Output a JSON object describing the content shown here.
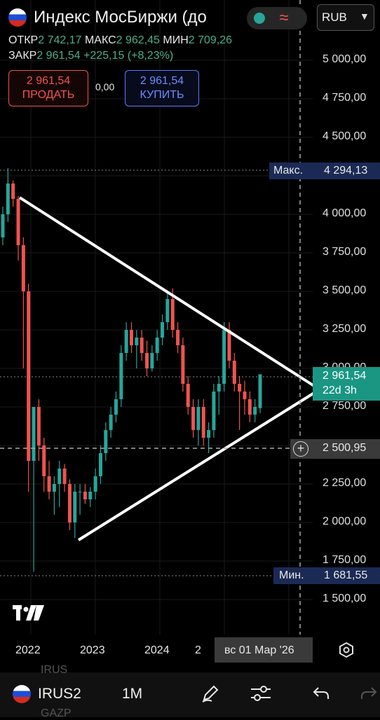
{
  "header": {
    "title": "Индекс МосБиржи (до",
    "currency": "RUB",
    "open_label": "ОТКР",
    "open_value": "2 742,17",
    "high_label": "МАКС",
    "high_value": "2 962,45",
    "low_label": "МИН",
    "low_value": "2 709,26",
    "close_label": "ЗАКР",
    "close_value": "2 961,54",
    "change": "+225,15 (+8,23%)",
    "sell_price": "2 961,54",
    "sell_label": "ПРОДАТЬ",
    "spread": "0,00",
    "buy_price": "2 961,54",
    "buy_label": "КУПИТЬ"
  },
  "chart_data": {
    "type": "candlestick",
    "y_ticks": [
      "5 000,00",
      "4 750,00",
      "4 500,00",
      "4 250,00",
      "4 000,00",
      "3 750,00",
      "3 500,00",
      "3 250,00",
      "3 000,00",
      "2 750,00",
      "2 500,00",
      "2 250,00",
      "2 000,00",
      "1 750,00",
      "1 500,00"
    ],
    "x_ticks": [
      "2022",
      "2023",
      "2024",
      "2"
    ],
    "max_label": "Макс.",
    "max_value": "4 294,13",
    "min_label": "Мин.",
    "min_value": "1 681,55",
    "last_price": "2 961,54",
    "countdown": "22d 3h",
    "crosshair_price": "2 500,95",
    "crosshair_date": "вс 01 Мар '26",
    "up_color": "#26a69a",
    "down_color": "#ef5350",
    "candles": [
      [
        3850,
        4050,
        3800,
        4000
      ],
      [
        4000,
        4300,
        3950,
        4200
      ],
      [
        4200,
        4220,
        4050,
        4100
      ],
      [
        4100,
        4120,
        3700,
        3800
      ],
      [
        3800,
        3850,
        3000,
        3500
      ],
      [
        3500,
        3550,
        2200,
        2400
      ],
      [
        2400,
        2750,
        1680,
        2750
      ],
      [
        2750,
        2800,
        2400,
        2500
      ],
      [
        2500,
        2550,
        2200,
        2300
      ],
      [
        2300,
        2400,
        2150,
        2200
      ],
      [
        2200,
        2300,
        2050,
        2250
      ],
      [
        2250,
        2400,
        2100,
        2350
      ],
      [
        2350,
        2380,
        2200,
        2250
      ],
      [
        2250,
        2280,
        1950,
        2000
      ],
      [
        2000,
        2250,
        1900,
        2200
      ],
      [
        2200,
        2250,
        2050,
        2200
      ],
      [
        2200,
        2250,
        2120,
        2150
      ],
      [
        2150,
        2230,
        2100,
        2200
      ],
      [
        2200,
        2350,
        2150,
        2300
      ],
      [
        2300,
        2500,
        2250,
        2450
      ],
      [
        2450,
        2650,
        2400,
        2600
      ],
      [
        2600,
        2750,
        2550,
        2700
      ],
      [
        2700,
        2850,
        2650,
        2800
      ],
      [
        2800,
        3150,
        2750,
        3100
      ],
      [
        3100,
        3300,
        3050,
        3250
      ],
      [
        3250,
        3300,
        3100,
        3150
      ],
      [
        3150,
        3250,
        3000,
        3200
      ],
      [
        3200,
        3250,
        3050,
        3100
      ],
      [
        3100,
        3180,
        2950,
        3000
      ],
      [
        3000,
        3150,
        2980,
        3100
      ],
      [
        3100,
        3250,
        3050,
        3200
      ],
      [
        3200,
        3350,
        3150,
        3300
      ],
      [
        3300,
        3500,
        3250,
        3450
      ],
      [
        3450,
        3520,
        3200,
        3250
      ],
      [
        3250,
        3300,
        3100,
        3150
      ],
      [
        3150,
        3200,
        2850,
        2900
      ],
      [
        2900,
        2950,
        2700,
        2750
      ],
      [
        2750,
        2800,
        2550,
        2600
      ],
      [
        2600,
        2800,
        2500,
        2750
      ],
      [
        2750,
        2800,
        2500,
        2550
      ],
      [
        2550,
        2650,
        2450,
        2600
      ],
      [
        2600,
        2900,
        2550,
        2850
      ],
      [
        2850,
        2950,
        2700,
        2900
      ],
      [
        2900,
        3300,
        2850,
        3250
      ],
      [
        3250,
        3300,
        3000,
        3050
      ],
      [
        3050,
        3100,
        2850,
        2900
      ],
      [
        2900,
        2950,
        2600,
        2850
      ],
      [
        2850,
        2920,
        2700,
        2800
      ],
      [
        2800,
        2850,
        2650,
        2700
      ],
      [
        2700,
        2800,
        2650,
        2750
      ],
      [
        2742.17,
        2962.45,
        2709.26,
        2961.54
      ]
    ]
  },
  "toolbar": {
    "symbol": "IRUS2",
    "interval": "1M",
    "ghost_top": "IRUS",
    "ghost_bottom": "GAZP"
  }
}
